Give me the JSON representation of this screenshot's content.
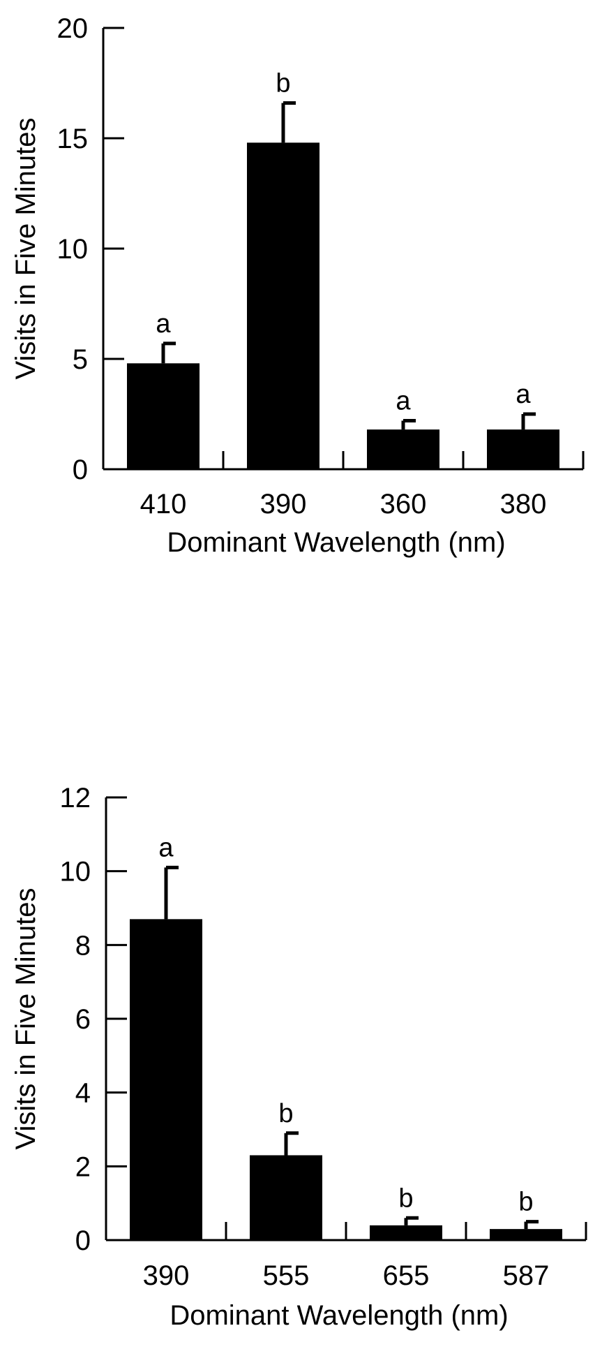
{
  "chart_data": [
    {
      "type": "bar",
      "categories": [
        "410",
        "390",
        "360",
        "380"
      ],
      "values": [
        4.8,
        14.8,
        1.8,
        1.8
      ],
      "errors": [
        0.9,
        1.8,
        0.4,
        0.7
      ],
      "significance_labels": [
        "a",
        "b",
        "a",
        "a"
      ],
      "xlabel": "Dominant Wavelength (nm)",
      "ylabel": "Visits in Five Minutes",
      "ylim": [
        0,
        20
      ],
      "yticks": [
        0,
        5,
        10,
        15,
        20
      ],
      "bar_color": "#000000",
      "grid": false
    },
    {
      "type": "bar",
      "categories": [
        "390",
        "555",
        "655",
        "587"
      ],
      "values": [
        8.7,
        2.3,
        0.4,
        0.3
      ],
      "errors": [
        1.4,
        0.6,
        0.2,
        0.2
      ],
      "significance_labels": [
        "a",
        "b",
        "b",
        "b"
      ],
      "xlabel": "Dominant Wavelength (nm)",
      "ylabel": "Visits in Five Minutes",
      "ylim": [
        0,
        12
      ],
      "yticks": [
        0,
        2,
        4,
        6,
        8,
        10,
        12
      ],
      "bar_color": "#000000",
      "grid": false
    }
  ]
}
